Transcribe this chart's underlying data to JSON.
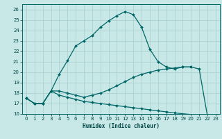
{
  "title": "",
  "xlabel": "Humidex (Indice chaleur)",
  "background_color": "#c8e8e8",
  "grid_color": "#aacccc",
  "line_color": "#006666",
  "xlim": [
    -0.5,
    23.5
  ],
  "ylim": [
    16,
    26.5
  ],
  "yticks": [
    16,
    17,
    18,
    19,
    20,
    21,
    22,
    23,
    24,
    25,
    26
  ],
  "x": [
    0,
    1,
    2,
    3,
    4,
    5,
    6,
    7,
    8,
    9,
    10,
    11,
    12,
    13,
    14,
    15,
    16,
    17,
    18,
    19,
    20,
    21,
    22,
    23
  ],
  "series1": [
    17.5,
    17.0,
    17.0,
    18.2,
    19.8,
    21.1,
    22.5,
    23.0,
    23.5,
    24.3,
    24.9,
    25.4,
    25.8,
    25.5,
    24.3,
    22.2,
    21.0,
    20.5,
    20.3,
    20.5,
    20.5,
    null,
    null,
    null
  ],
  "series2": [
    17.5,
    17.0,
    17.0,
    18.2,
    18.2,
    18.0,
    17.8,
    17.6,
    17.8,
    18.0,
    18.3,
    18.7,
    19.1,
    19.5,
    19.8,
    20.0,
    20.2,
    20.3,
    20.4,
    20.5,
    20.5,
    20.3,
    15.8,
    null
  ],
  "series3": [
    17.5,
    17.0,
    17.0,
    18.2,
    17.8,
    17.6,
    17.4,
    17.2,
    17.1,
    17.0,
    16.9,
    16.8,
    16.7,
    16.6,
    16.5,
    16.4,
    16.3,
    16.2,
    16.1,
    null,
    null,
    null,
    15.8,
    null
  ]
}
